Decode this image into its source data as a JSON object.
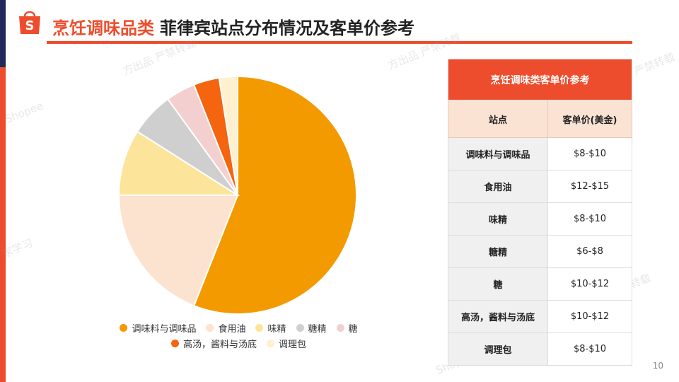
{
  "title": {
    "category": "烹饪调味品类",
    "subtitle": "菲律宾站点分布情况及客单价参考"
  },
  "chart_data": {
    "type": "pie",
    "categories": [
      "调味料与调味品",
      "食用油",
      "味精",
      "糖精",
      "糖",
      "高汤，酱料与汤底",
      "调理包"
    ],
    "values": [
      56,
      19,
      9,
      6,
      4,
      3.5,
      2.5
    ],
    "colors": [
      "#f39a00",
      "#fbe3cf",
      "#fde49b",
      "#cfcfcf",
      "#f4cfd0",
      "#f5640f",
      "#fff1cf"
    ],
    "legend_position": "bottom"
  },
  "legend": {
    "row1": [
      "调味料与调味品",
      "食用油",
      "味精",
      "糖精",
      "糖"
    ],
    "row2": [
      "高汤，酱料与汤底",
      "调理包"
    ]
  },
  "table": {
    "caption": "烹饪调味类客单价参考",
    "headers": [
      "站点",
      "客单价(美金)"
    ],
    "rows": [
      {
        "site": "调味料与调味品",
        "price": "$8-$10"
      },
      {
        "site": "食用油",
        "price": "$12-$15"
      },
      {
        "site": "味精",
        "price": "$8-$10"
      },
      {
        "site": "糖精",
        "price": "$6-$8"
      },
      {
        "site": "糖",
        "price": "$10-$12"
      },
      {
        "site": "高汤，酱料与汤底",
        "price": "$10-$12"
      },
      {
        "site": "调理包",
        "price": "$8-$10"
      }
    ]
  },
  "page_number": "10",
  "watermarks": [
    "方出品 严禁转载",
    "方出品 严禁转载",
    "严禁转载",
    "Shopee",
    "家学习",
    "中心官方出品 严禁转载",
    "Shopee"
  ]
}
